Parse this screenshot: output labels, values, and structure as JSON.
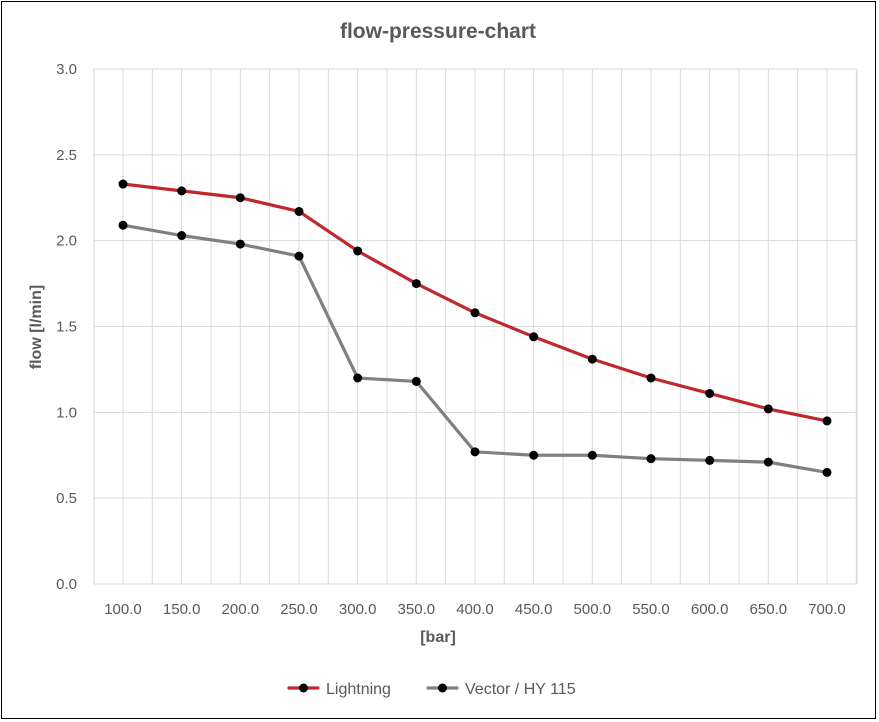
{
  "chart_data": {
    "type": "line",
    "title": "flow-pressure-chart",
    "xlabel": "[bar]",
    "ylabel": "flow [l/min]",
    "x": [
      "100.0",
      "150.0",
      "200.0",
      "250.0",
      "300.0",
      "350.0",
      "400.0",
      "450.0",
      "500.0",
      "550.0",
      "600.0",
      "650.0",
      "700.0"
    ],
    "ylim": [
      0,
      3.0
    ],
    "yticks": [
      "0.0",
      "0.5",
      "1.0",
      "1.5",
      "2.0",
      "2.5",
      "3.0"
    ],
    "grid": true,
    "legend_position": "bottom",
    "series": [
      {
        "name": "Lightning",
        "color": "#c0282e",
        "values": [
          2.33,
          2.29,
          2.25,
          2.17,
          1.94,
          1.75,
          1.58,
          1.44,
          1.31,
          1.2,
          1.11,
          1.02,
          0.95
        ]
      },
      {
        "name": "Vector / HY 115",
        "color": "#808080",
        "values": [
          2.09,
          2.03,
          1.98,
          1.91,
          1.2,
          1.18,
          0.77,
          0.75,
          0.75,
          0.73,
          0.72,
          0.71,
          0.65
        ]
      }
    ]
  }
}
